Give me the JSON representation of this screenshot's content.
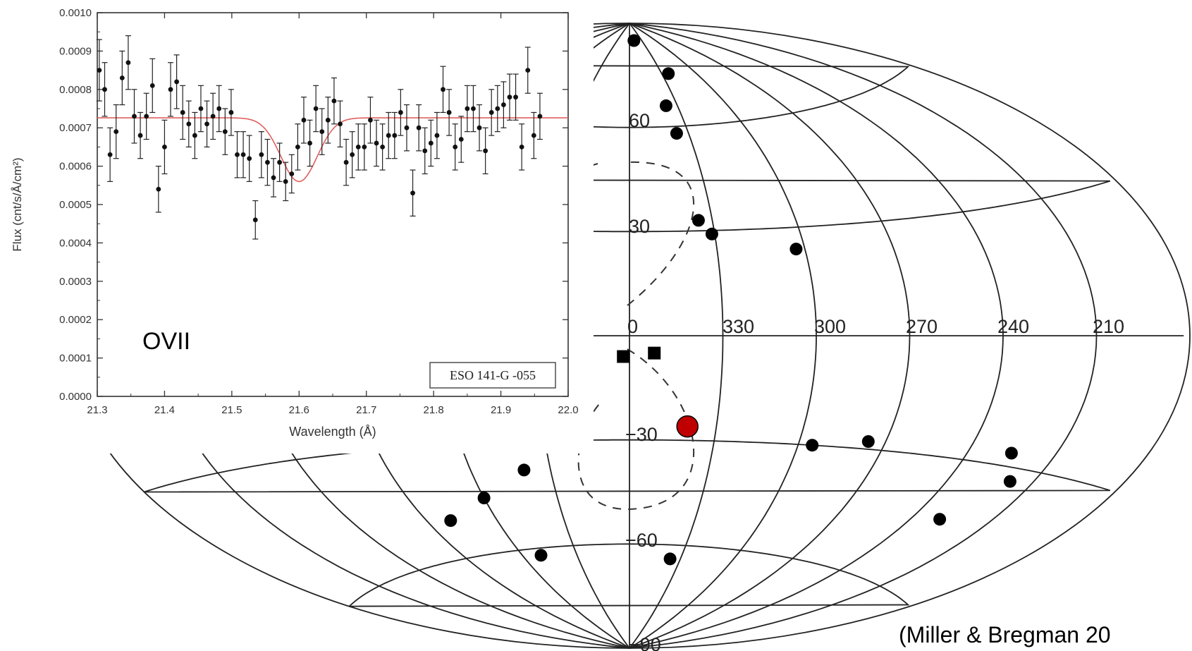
{
  "chart_data": [
    {
      "type": "scatter",
      "xlabel": "Wavelength (Å)",
      "ylabel": "Flux (cnt/s/Å/cm²)",
      "xlim": [
        21.3,
        22.0
      ],
      "ylim": [
        0.0,
        0.001
      ],
      "x_ticks": [
        "21.3",
        "21.4",
        "21.5",
        "21.6",
        "21.7",
        "21.8",
        "21.9",
        "22.0"
      ],
      "y_ticks": [
        "0.0000",
        "0.0001",
        "0.0002",
        "0.0003",
        "0.0004",
        "0.0005",
        "0.0006",
        "0.0007",
        "0.0008",
        "0.0009",
        "0.0010"
      ],
      "annotation": "OVII",
      "legend_box": "ESO 141-G -055",
      "fit_model": {
        "continuum": 0.000726,
        "line_center": 21.6,
        "line_depth": 0.000166,
        "line_sigma": 0.027,
        "color": "#e06060"
      },
      "points": [
        [
          21.303,
          0.00085,
          8e-05
        ],
        [
          21.311,
          0.0008,
          7e-05
        ],
        [
          21.319,
          0.00063,
          7e-05
        ],
        [
          21.328,
          0.00069,
          7e-05
        ],
        [
          21.337,
          0.00083,
          7e-05
        ],
        [
          21.346,
          0.00087,
          7e-05
        ],
        [
          21.355,
          0.00073,
          7e-05
        ],
        [
          21.364,
          0.00068,
          6e-05
        ],
        [
          21.373,
          0.00073,
          6e-05
        ],
        [
          21.382,
          0.00081,
          7e-05
        ],
        [
          21.391,
          0.00054,
          6e-05
        ],
        [
          21.4,
          0.00065,
          7e-05
        ],
        [
          21.409,
          0.0008,
          7e-05
        ],
        [
          21.418,
          0.00082,
          7e-05
        ],
        [
          21.427,
          0.00074,
          7e-05
        ],
        [
          21.436,
          0.00071,
          6e-05
        ],
        [
          21.445,
          0.00068,
          6e-05
        ],
        [
          21.454,
          0.00075,
          6e-05
        ],
        [
          21.463,
          0.00071,
          6e-05
        ],
        [
          21.472,
          0.00073,
          6e-05
        ],
        [
          21.481,
          0.00075,
          6e-05
        ],
        [
          21.49,
          0.00069,
          6e-05
        ],
        [
          21.499,
          0.00074,
          6e-05
        ],
        [
          21.508,
          0.00063,
          6e-05
        ],
        [
          21.517,
          0.00063,
          6e-05
        ],
        [
          21.526,
          0.00062,
          6e-05
        ],
        [
          21.535,
          0.00046,
          5e-05
        ],
        [
          21.544,
          0.00063,
          6e-05
        ],
        [
          21.553,
          0.00061,
          6e-05
        ],
        [
          21.562,
          0.00057,
          5e-05
        ],
        [
          21.571,
          0.00061,
          5e-05
        ],
        [
          21.58,
          0.00056,
          5e-05
        ],
        [
          21.589,
          0.00058,
          5e-05
        ],
        [
          21.598,
          0.00065,
          6e-05
        ],
        [
          21.607,
          0.00072,
          6e-05
        ],
        [
          21.616,
          0.00066,
          6e-05
        ],
        [
          21.625,
          0.00075,
          6e-05
        ],
        [
          21.634,
          0.00069,
          6e-05
        ],
        [
          21.643,
          0.00072,
          6e-05
        ],
        [
          21.652,
          0.00077,
          6e-05
        ],
        [
          21.661,
          0.00071,
          6e-05
        ],
        [
          21.67,
          0.00061,
          6e-05
        ],
        [
          21.679,
          0.00063,
          6e-05
        ],
        [
          21.688,
          0.00065,
          6e-05
        ],
        [
          21.697,
          0.00065,
          6e-05
        ],
        [
          21.706,
          0.00072,
          6e-05
        ],
        [
          21.715,
          0.00066,
          6e-05
        ],
        [
          21.724,
          0.00065,
          6e-05
        ],
        [
          21.733,
          0.00068,
          6e-05
        ],
        [
          21.742,
          0.00068,
          6e-05
        ],
        [
          21.751,
          0.00074,
          6e-05
        ],
        [
          21.76,
          0.0007,
          6e-05
        ],
        [
          21.769,
          0.00053,
          6e-05
        ],
        [
          21.778,
          0.0007,
          6e-05
        ],
        [
          21.787,
          0.00064,
          6e-05
        ],
        [
          21.796,
          0.00066,
          6e-05
        ],
        [
          21.805,
          0.00068,
          6e-05
        ],
        [
          21.814,
          0.0008,
          6e-05
        ],
        [
          21.823,
          0.00074,
          6e-05
        ],
        [
          21.832,
          0.00065,
          6e-05
        ],
        [
          21.841,
          0.00067,
          6e-05
        ],
        [
          21.85,
          0.00075,
          6e-05
        ],
        [
          21.859,
          0.00075,
          6e-05
        ],
        [
          21.868,
          0.0007,
          6e-05
        ],
        [
          21.877,
          0.00064,
          6e-05
        ],
        [
          21.886,
          0.00074,
          6e-05
        ],
        [
          21.895,
          0.00075,
          6e-05
        ],
        [
          21.904,
          0.00076,
          6e-05
        ],
        [
          21.913,
          0.00078,
          6e-05
        ],
        [
          21.922,
          0.00078,
          6e-05
        ],
        [
          21.931,
          0.00065,
          6e-05
        ],
        [
          21.94,
          0.00085,
          6e-05
        ],
        [
          21.949,
          0.00068,
          6e-05
        ],
        [
          21.958,
          0.00073,
          6e-05
        ]
      ]
    },
    {
      "type": "scatter",
      "projection": "aitoff-galactic",
      "lon_labels": [
        "0",
        "330",
        "300",
        "270",
        "240",
        "210"
      ],
      "lat_labels": [
        "60",
        "30",
        "−30",
        "−60",
        "−90"
      ],
      "circles": [
        {
          "l": 349,
          "b": 85
        },
        {
          "l": 324,
          "b": 75
        },
        {
          "l": 337,
          "b": 66
        },
        {
          "l": 336,
          "b": 58
        },
        {
          "l": 335,
          "b": 33
        },
        {
          "l": 331,
          "b": 29
        },
        {
          "l": 303,
          "b": 24
        },
        {
          "l": 295,
          "b": -30
        },
        {
          "l": 276,
          "b": -28
        },
        {
          "l": 225,
          "b": -27
        },
        {
          "l": 218,
          "b": -33
        },
        {
          "l": 229,
          "b": -44
        },
        {
          "l": 336,
          "b": -64
        },
        {
          "l": 40,
          "b": -38
        },
        {
          "l": 80,
          "b": -50
        },
        {
          "l": 60,
          "b": -45
        },
        {
          "l": 50,
          "b": -62
        }
      ],
      "squares": [
        {
          "l": 2,
          "b": -6
        },
        {
          "l": 352,
          "b": -5
        }
      ],
      "highlight": {
        "l": 340,
        "b": -26,
        "color": "#c00000"
      },
      "point_color": "#000000"
    }
  ],
  "citation": "(Miller & Bregman 20"
}
